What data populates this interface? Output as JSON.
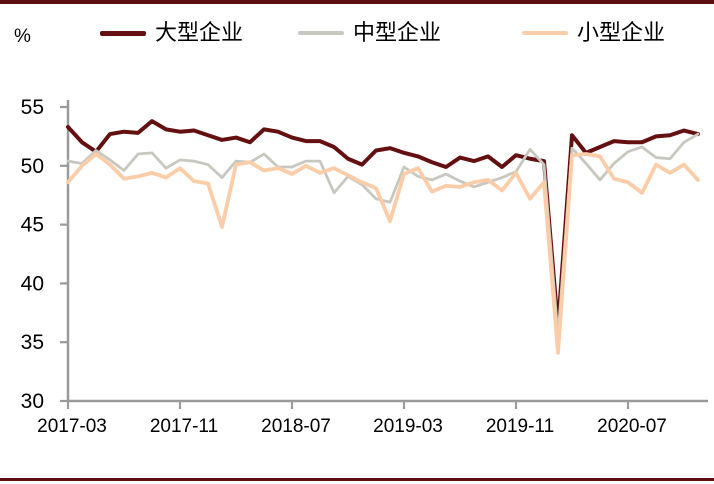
{
  "page": {
    "unit_label": "%"
  },
  "accents": {
    "border_color": "#5E0F0F",
    "axis_color": "#9A9A9A",
    "text_color": "#000000"
  },
  "legend": [
    {
      "label": "大型企业",
      "color": "#651010"
    },
    {
      "label": "中型企业",
      "color": "#C8C8C0"
    },
    {
      "label": "小型企业",
      "color": "#FACDA8"
    }
  ],
  "chart_data": {
    "type": "line",
    "title": "",
    "ylabel": "%",
    "xlabel": "",
    "grid": false,
    "legend_position": "top-left",
    "ylim": [
      30,
      55
    ],
    "yticks": [
      55,
      50,
      45,
      40,
      35,
      30
    ],
    "xtick_every": 8,
    "xtick_labels": [
      "2017-03",
      "2017-11",
      "2018-07",
      "2019-03",
      "2019-11",
      "2020-07"
    ],
    "x": [
      "2017-03",
      "2017-04",
      "2017-05",
      "2017-06",
      "2017-07",
      "2017-08",
      "2017-09",
      "2017-10",
      "2017-11",
      "2017-12",
      "2018-01",
      "2018-02",
      "2018-03",
      "2018-04",
      "2018-05",
      "2018-06",
      "2018-07",
      "2018-08",
      "2018-09",
      "2018-10",
      "2018-11",
      "2018-12",
      "2019-01",
      "2019-02",
      "2019-03",
      "2019-04",
      "2019-05",
      "2019-06",
      "2019-07",
      "2019-08",
      "2019-09",
      "2019-10",
      "2019-11",
      "2019-12",
      "2020-01",
      "2020-02",
      "2020-03",
      "2020-04",
      "2020-05",
      "2020-06",
      "2020-07",
      "2020-08",
      "2020-09",
      "2020-10",
      "2020-11",
      "2020-12"
    ],
    "series": [
      {
        "name": "大型企业",
        "color": "#651010",
        "width": 4,
        "values": [
          53.3,
          52.0,
          51.2,
          52.7,
          52.9,
          52.8,
          53.8,
          53.1,
          52.9,
          53.0,
          52.6,
          52.2,
          52.4,
          52.0,
          53.1,
          52.9,
          52.4,
          52.1,
          52.1,
          51.6,
          50.6,
          50.1,
          51.3,
          51.5,
          51.1,
          50.8,
          50.3,
          49.9,
          50.7,
          50.4,
          50.8,
          49.9,
          50.9,
          50.6,
          50.4,
          36.3,
          52.6,
          51.1,
          51.6,
          52.1,
          52.0,
          52.0,
          52.5,
          52.6,
          53.0,
          52.7
        ]
      },
      {
        "name": "中型企业",
        "color": "#C8C8C0",
        "width": 2.8,
        "values": [
          50.4,
          50.2,
          51.3,
          50.5,
          49.6,
          51.0,
          51.1,
          49.8,
          50.5,
          50.4,
          50.1,
          49.0,
          50.4,
          50.3,
          51.0,
          49.9,
          49.9,
          50.4,
          50.4,
          47.7,
          49.1,
          48.4,
          47.2,
          46.9,
          49.9,
          49.1,
          48.8,
          49.3,
          48.7,
          48.2,
          48.6,
          49.0,
          49.5,
          51.4,
          50.1,
          35.5,
          51.5,
          50.2,
          48.8,
          50.2,
          51.2,
          51.6,
          50.7,
          50.6,
          52.0,
          52.7
        ]
      },
      {
        "name": "小型企业",
        "color": "#FACDA8",
        "width": 3.8,
        "values": [
          48.6,
          50.0,
          51.0,
          50.1,
          48.9,
          49.1,
          49.4,
          49.0,
          49.8,
          48.7,
          48.5,
          44.8,
          50.1,
          50.3,
          49.6,
          49.8,
          49.3,
          50.0,
          49.4,
          49.8,
          49.2,
          48.6,
          48.1,
          45.3,
          49.3,
          49.8,
          47.8,
          48.3,
          48.2,
          48.6,
          48.8,
          47.9,
          49.4,
          47.2,
          48.6,
          34.1,
          50.9,
          51.0,
          50.8,
          48.9,
          48.6,
          47.7,
          50.1,
          49.4,
          50.1,
          48.8
        ]
      }
    ]
  }
}
